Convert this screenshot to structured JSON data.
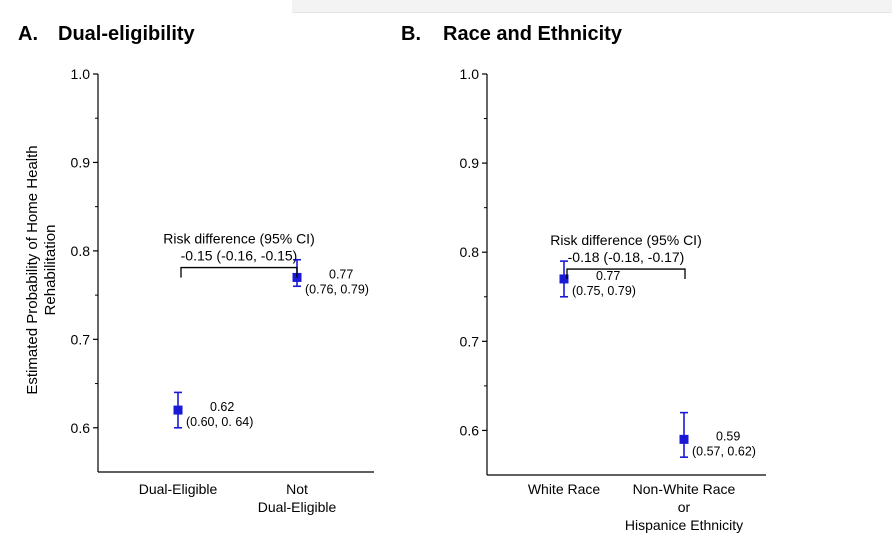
{
  "ylabel_lines": [
    "Estimated Probability of Home Health",
    "Rehabilitation"
  ],
  "chart_data": [
    {
      "type": "scatter",
      "panel_letter": "A.",
      "title": "Dual-eligibility",
      "ylim": [
        0.55,
        1.0
      ],
      "yticks": [
        "0.6",
        "0.7",
        "0.8",
        "0.9",
        "1.0"
      ],
      "categories": [
        {
          "lines": [
            "Dual-Eligible"
          ],
          "value": 0.62,
          "lower": 0.6,
          "upper": 0.64,
          "label_value": "0.62",
          "label_ci": "(0.60, 0. 64)"
        },
        {
          "lines": [
            "Not",
            "Dual-Eligible"
          ],
          "value": 0.77,
          "lower": 0.76,
          "upper": 0.79,
          "label_value": "0.77",
          "label_ci": "(0.76, 0.79)"
        }
      ],
      "risk_difference": {
        "line1": "Risk difference (95% CI)",
        "line2": "-0.15 (-0.16, -0.15)",
        "y": 0.78
      },
      "marker_color": "#1a1ad6"
    },
    {
      "type": "scatter",
      "panel_letter": "B.",
      "title": "Race and Ethnicity",
      "ylim": [
        0.55,
        1.0
      ],
      "yticks": [
        "0.6",
        "0.7",
        "0.8",
        "0.9",
        "1.0"
      ],
      "categories": [
        {
          "lines": [
            "White Race"
          ],
          "value": 0.77,
          "lower": 0.75,
          "upper": 0.79,
          "label_value": "0.77",
          "label_ci": "(0.75, 0.79)"
        },
        {
          "lines": [
            "Non-White Race",
            "or",
            "Hispanice Ethnicity"
          ],
          "value": 0.59,
          "lower": 0.57,
          "upper": 0.62,
          "label_value": "0.59",
          "label_ci": "(0.57, 0.62)"
        }
      ],
      "risk_difference": {
        "line1": "Risk difference (95% CI)",
        "line2": "-0.18 (-0.18, -0.17)",
        "y": 0.78
      },
      "marker_color": "#1a1ad6"
    }
  ]
}
